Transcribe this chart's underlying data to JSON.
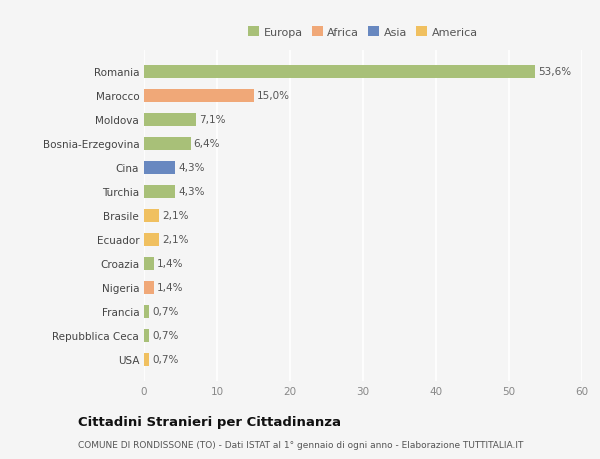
{
  "countries": [
    "Romania",
    "Marocco",
    "Moldova",
    "Bosnia-Erzegovina",
    "Cina",
    "Turchia",
    "Brasile",
    "Ecuador",
    "Croazia",
    "Nigeria",
    "Francia",
    "Repubblica Ceca",
    "USA"
  ],
  "values": [
    53.6,
    15.0,
    7.1,
    6.4,
    4.3,
    4.3,
    2.1,
    2.1,
    1.4,
    1.4,
    0.7,
    0.7,
    0.7
  ],
  "labels": [
    "53,6%",
    "15,0%",
    "7,1%",
    "6,4%",
    "4,3%",
    "4,3%",
    "2,1%",
    "2,1%",
    "1,4%",
    "1,4%",
    "0,7%",
    "0,7%",
    "0,7%"
  ],
  "colors": [
    "#a8c078",
    "#f0a878",
    "#a8c078",
    "#a8c078",
    "#6888c0",
    "#a8c078",
    "#f0c060",
    "#f0c060",
    "#a8c078",
    "#f0a878",
    "#a8c078",
    "#a8c078",
    "#f0c060"
  ],
  "legend_labels": [
    "Europa",
    "Africa",
    "Asia",
    "America"
  ],
  "legend_colors": [
    "#a8c078",
    "#f0a878",
    "#6888c0",
    "#f0c060"
  ],
  "xlim": [
    0,
    60
  ],
  "xticks": [
    0,
    10,
    20,
    30,
    40,
    50,
    60
  ],
  "title": "Cittadini Stranieri per Cittadinanza",
  "subtitle": "COMUNE DI RONDISSONE (TO) - Dati ISTAT al 1° gennaio di ogni anno - Elaborazione TUTTITALIA.IT",
  "bg_color": "#f5f5f5",
  "grid_color": "#ffffff",
  "bar_height": 0.55,
  "label_fontsize": 7.5,
  "tick_fontsize": 7.5,
  "title_fontsize": 9.5,
  "subtitle_fontsize": 6.5,
  "legend_fontsize": 8.0
}
